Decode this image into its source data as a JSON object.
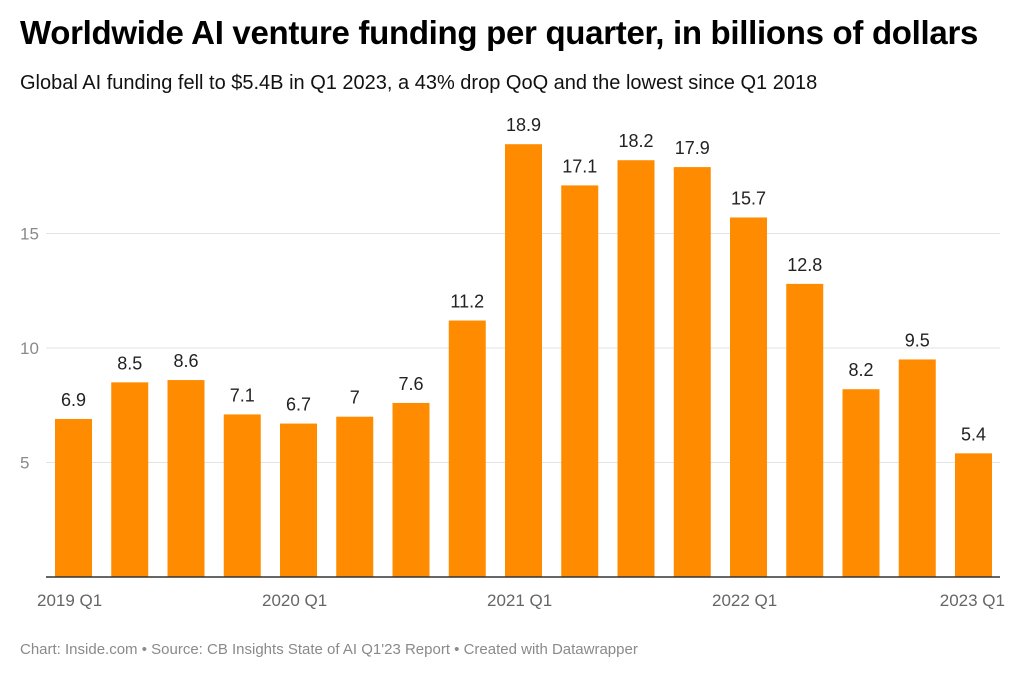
{
  "title": "Worldwide AI venture funding per quarter, in billions of dollars",
  "subtitle": "Global AI funding fell to $5.4B in Q1 2023, a 43% drop QoQ and the lowest since Q1 2018",
  "footer": {
    "source_line": "Chart: Inside.com • Source: CB Insights State of AI Q1'23 Report • Created with Datawrapper"
  },
  "colors": {
    "bar": "#ff8c00",
    "grid": "#e3e3e3",
    "axis": "#333333"
  },
  "chart_data": {
    "type": "bar",
    "title": "Worldwide AI venture funding per quarter, in billions of dollars",
    "xlabel": "",
    "ylabel": "",
    "ylim": [
      0,
      20
    ],
    "yticks": [
      5,
      10,
      15
    ],
    "grid": true,
    "categories": [
      "2019 Q1",
      "2019 Q2",
      "2019 Q3",
      "2019 Q4",
      "2020 Q1",
      "2020 Q2",
      "2020 Q3",
      "2020 Q4",
      "2021 Q1",
      "2021 Q2",
      "2021 Q3",
      "2021 Q4",
      "2022 Q1",
      "2022 Q2",
      "2022 Q3",
      "2022 Q4",
      "2023 Q1"
    ],
    "category_labels": [
      "2019 Q1",
      "",
      "",
      "",
      "2020 Q1",
      "",
      "",
      "",
      "2021 Q1",
      "",
      "",
      "",
      "2022 Q1",
      "",
      "",
      "",
      "2023 Q1"
    ],
    "values": [
      6.9,
      8.5,
      8.6,
      7.1,
      6.7,
      7,
      7.6,
      11.2,
      18.9,
      17.1,
      18.2,
      17.9,
      15.7,
      12.8,
      8.2,
      9.5,
      5.4
    ]
  }
}
